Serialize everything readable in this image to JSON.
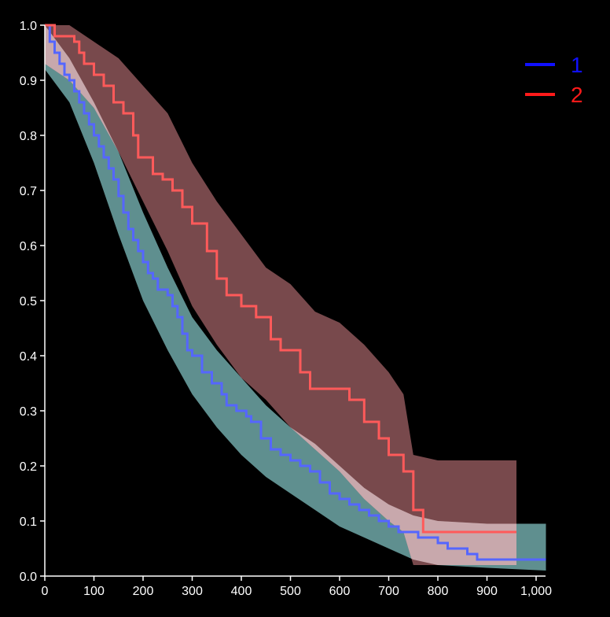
{
  "chart_data": {
    "type": "line",
    "title": "",
    "xlabel": "",
    "ylabel": "",
    "xlim": [
      0,
      1020
    ],
    "ylim": [
      0,
      1.0
    ],
    "x_ticks": [
      {
        "value": 0,
        "label": "0"
      },
      {
        "value": 100,
        "label": "100"
      },
      {
        "value": 200,
        "label": "200"
      },
      {
        "value": 300,
        "label": "300"
      },
      {
        "value": 400,
        "label": "400"
      },
      {
        "value": 500,
        "label": "500"
      },
      {
        "value": 600,
        "label": "600"
      },
      {
        "value": 700,
        "label": "700"
      },
      {
        "value": 800,
        "label": "800"
      },
      {
        "value": 900,
        "label": "900"
      },
      {
        "value": 1000,
        "label": "1,000"
      }
    ],
    "y_ticks": [
      {
        "value": 0.0,
        "label": "0.0"
      },
      {
        "value": 0.1,
        "label": "0.1"
      },
      {
        "value": 0.2,
        "label": "0.2"
      },
      {
        "value": 0.3,
        "label": "0.3"
      },
      {
        "value": 0.4,
        "label": "0.4"
      },
      {
        "value": 0.5,
        "label": "0.5"
      },
      {
        "value": 0.6,
        "label": "0.6"
      },
      {
        "value": 0.7,
        "label": "0.7"
      },
      {
        "value": 0.8,
        "label": "0.8"
      },
      {
        "value": 0.9,
        "label": "0.9"
      },
      {
        "value": 1.0,
        "label": "1.0"
      }
    ],
    "grid": false,
    "legend_position": "top-right",
    "series": [
      {
        "name": "1",
        "color": "#5566ff",
        "legend_color": "#1010ff",
        "band_color": "#5f8f8f",
        "step": true,
        "points": [
          [
            0,
            1.0
          ],
          [
            10,
            0.97
          ],
          [
            20,
            0.95
          ],
          [
            30,
            0.93
          ],
          [
            40,
            0.91
          ],
          [
            50,
            0.9
          ],
          [
            60,
            0.88
          ],
          [
            70,
            0.86
          ],
          [
            80,
            0.84
          ],
          [
            90,
            0.82
          ],
          [
            100,
            0.8
          ],
          [
            110,
            0.78
          ],
          [
            120,
            0.76
          ],
          [
            130,
            0.74
          ],
          [
            140,
            0.72
          ],
          [
            150,
            0.69
          ],
          [
            160,
            0.66
          ],
          [
            170,
            0.63
          ],
          [
            180,
            0.61
          ],
          [
            190,
            0.59
          ],
          [
            200,
            0.57
          ],
          [
            210,
            0.55
          ],
          [
            220,
            0.54
          ],
          [
            230,
            0.52
          ],
          [
            250,
            0.51
          ],
          [
            260,
            0.49
          ],
          [
            270,
            0.47
          ],
          [
            280,
            0.44
          ],
          [
            290,
            0.41
          ],
          [
            300,
            0.4
          ],
          [
            320,
            0.37
          ],
          [
            340,
            0.35
          ],
          [
            360,
            0.33
          ],
          [
            370,
            0.31
          ],
          [
            390,
            0.3
          ],
          [
            410,
            0.29
          ],
          [
            420,
            0.28
          ],
          [
            440,
            0.25
          ],
          [
            460,
            0.23
          ],
          [
            480,
            0.22
          ],
          [
            500,
            0.21
          ],
          [
            520,
            0.2
          ],
          [
            540,
            0.19
          ],
          [
            560,
            0.17
          ],
          [
            580,
            0.15
          ],
          [
            600,
            0.14
          ],
          [
            620,
            0.13
          ],
          [
            640,
            0.12
          ],
          [
            660,
            0.11
          ],
          [
            680,
            0.1
          ],
          [
            700,
            0.09
          ],
          [
            720,
            0.08
          ],
          [
            760,
            0.07
          ],
          [
            800,
            0.06
          ],
          [
            820,
            0.05
          ],
          [
            860,
            0.04
          ],
          [
            880,
            0.03
          ],
          [
            1020,
            0.03
          ]
        ],
        "ci_upper": [
          [
            0,
            1.0
          ],
          [
            50,
            0.94
          ],
          [
            100,
            0.86
          ],
          [
            150,
            0.77
          ],
          [
            200,
            0.66
          ],
          [
            250,
            0.56
          ],
          [
            300,
            0.47
          ],
          [
            350,
            0.41
          ],
          [
            400,
            0.36
          ],
          [
            450,
            0.31
          ],
          [
            500,
            0.27
          ],
          [
            550,
            0.24
          ],
          [
            600,
            0.2
          ],
          [
            650,
            0.16
          ],
          [
            700,
            0.13
          ],
          [
            750,
            0.11
          ],
          [
            800,
            0.1
          ],
          [
            900,
            0.095
          ],
          [
            1020,
            0.095
          ]
        ],
        "ci_lower": [
          [
            0,
            0.92
          ],
          [
            50,
            0.86
          ],
          [
            100,
            0.75
          ],
          [
            150,
            0.62
          ],
          [
            200,
            0.5
          ],
          [
            250,
            0.41
          ],
          [
            300,
            0.33
          ],
          [
            350,
            0.27
          ],
          [
            400,
            0.22
          ],
          [
            450,
            0.18
          ],
          [
            500,
            0.15
          ],
          [
            550,
            0.12
          ],
          [
            600,
            0.09
          ],
          [
            650,
            0.07
          ],
          [
            700,
            0.05
          ],
          [
            750,
            0.03
          ],
          [
            800,
            0.02
          ],
          [
            900,
            0.015
          ],
          [
            1020,
            0.01
          ]
        ]
      },
      {
        "name": "2",
        "color": "#ff5a5a",
        "legend_color": "#ff1a1a",
        "band_color": "#9a5e62",
        "step": true,
        "points": [
          [
            0,
            1.0
          ],
          [
            20,
            0.98
          ],
          [
            60,
            0.97
          ],
          [
            70,
            0.95
          ],
          [
            80,
            0.93
          ],
          [
            100,
            0.91
          ],
          [
            120,
            0.89
          ],
          [
            140,
            0.86
          ],
          [
            160,
            0.84
          ],
          [
            180,
            0.8
          ],
          [
            190,
            0.76
          ],
          [
            220,
            0.73
          ],
          [
            240,
            0.72
          ],
          [
            260,
            0.7
          ],
          [
            280,
            0.67
          ],
          [
            300,
            0.64
          ],
          [
            330,
            0.59
          ],
          [
            350,
            0.54
          ],
          [
            370,
            0.51
          ],
          [
            400,
            0.49
          ],
          [
            430,
            0.47
          ],
          [
            460,
            0.43
          ],
          [
            480,
            0.41
          ],
          [
            500,
            0.41
          ],
          [
            520,
            0.37
          ],
          [
            540,
            0.34
          ],
          [
            560,
            0.34
          ],
          [
            590,
            0.34
          ],
          [
            620,
            0.32
          ],
          [
            650,
            0.28
          ],
          [
            680,
            0.25
          ],
          [
            700,
            0.22
          ],
          [
            730,
            0.19
          ],
          [
            750,
            0.12
          ],
          [
            770,
            0.08
          ],
          [
            960,
            0.08
          ]
        ],
        "ci_upper": [
          [
            0,
            1.0
          ],
          [
            50,
            1.0
          ],
          [
            100,
            0.97
          ],
          [
            150,
            0.94
          ],
          [
            200,
            0.89
          ],
          [
            250,
            0.84
          ],
          [
            300,
            0.75
          ],
          [
            350,
            0.68
          ],
          [
            400,
            0.62
          ],
          [
            450,
            0.56
          ],
          [
            500,
            0.53
          ],
          [
            550,
            0.48
          ],
          [
            600,
            0.46
          ],
          [
            650,
            0.42
          ],
          [
            700,
            0.37
          ],
          [
            730,
            0.33
          ],
          [
            750,
            0.22
          ],
          [
            800,
            0.21
          ],
          [
            960,
            0.21
          ]
        ],
        "ci_lower": [
          [
            0,
            0.93
          ],
          [
            50,
            0.9
          ],
          [
            100,
            0.85
          ],
          [
            150,
            0.77
          ],
          [
            200,
            0.68
          ],
          [
            250,
            0.59
          ],
          [
            300,
            0.49
          ],
          [
            350,
            0.42
          ],
          [
            400,
            0.36
          ],
          [
            450,
            0.32
          ],
          [
            500,
            0.27
          ],
          [
            550,
            0.23
          ],
          [
            600,
            0.19
          ],
          [
            650,
            0.14
          ],
          [
            700,
            0.1
          ],
          [
            730,
            0.08
          ],
          [
            750,
            0.02
          ],
          [
            800,
            0.02
          ],
          [
            960,
            0.02
          ]
        ]
      }
    ]
  }
}
